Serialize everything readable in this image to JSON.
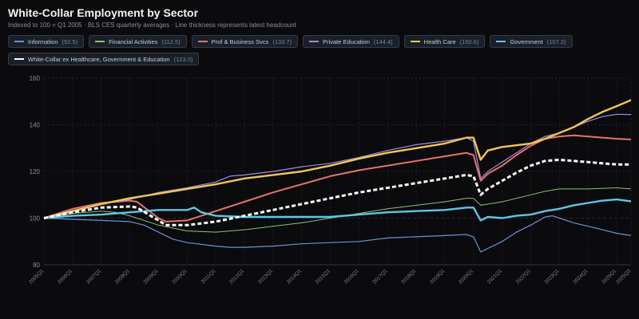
{
  "chart_data": {
    "type": "line",
    "title": "White-Collar Employment by Sector",
    "subtitle": "Indexed to 100 = Q1 2005 · BLS CES quarterly averages · Line thickness represents latest headcount",
    "xlabel": "",
    "ylabel": "",
    "ylim": [
      80,
      160
    ],
    "yticks": [
      80,
      100,
      120,
      140,
      160
    ],
    "grid": true,
    "legend_placement": "top",
    "x_start": "2005Q1",
    "x_end": "2025Q3",
    "xtick_labels": [
      "2005Q1",
      "2006Q1",
      "2007Q1",
      "2008Q1",
      "2009Q1",
      "2010Q1",
      "2011Q1",
      "2012Q1",
      "2013Q1",
      "2014Q1",
      "2015Q1",
      "2016Q1",
      "2017Q1",
      "2018Q1",
      "2019Q1",
      "2020Q1",
      "2021Q1",
      "2022Q1",
      "2023Q1",
      "2024Q1",
      "2025Q1",
      "2025Q3"
    ],
    "series": [
      {
        "name": "Information",
        "latest": "92.5",
        "color": "#6f8fd6",
        "width": 1.2,
        "dashed": false,
        "points": [
          [
            "2005Q1",
            100
          ],
          [
            "2006Q1",
            99.5
          ],
          [
            "2007Q1",
            99
          ],
          [
            "2008Q1",
            98.5
          ],
          [
            "2008Q3",
            97
          ],
          [
            "2009Q1",
            94
          ],
          [
            "2009Q3",
            91
          ],
          [
            "2010Q1",
            89.5
          ],
          [
            "2011Q1",
            88
          ],
          [
            "2011Q3",
            87.5
          ],
          [
            "2012Q1",
            87.5
          ],
          [
            "2013Q1",
            88
          ],
          [
            "2014Q1",
            89
          ],
          [
            "2015Q1",
            89.5
          ],
          [
            "2016Q1",
            90
          ],
          [
            "2017Q1",
            91.5
          ],
          [
            "2018Q1",
            92
          ],
          [
            "2019Q1",
            92.5
          ],
          [
            "2019Q4",
            93
          ],
          [
            "2020Q1",
            92
          ],
          [
            "2020Q2",
            85.5
          ],
          [
            "2020Q3",
            87
          ],
          [
            "2021Q1",
            90
          ],
          [
            "2021Q3",
            94
          ],
          [
            "2022Q1",
            97
          ],
          [
            "2022Q3",
            100.5
          ],
          [
            "2022Q4",
            101
          ],
          [
            "2023Q1",
            100
          ],
          [
            "2023Q3",
            98
          ],
          [
            "2024Q1",
            96.5
          ],
          [
            "2024Q3",
            95
          ],
          [
            "2025Q1",
            93.5
          ],
          [
            "2025Q3",
            92.5
          ]
        ]
      },
      {
        "name": "Financial Activities",
        "latest": "112.5",
        "color": "#8fbf7a",
        "width": 1.0,
        "dashed": false,
        "points": [
          [
            "2005Q1",
            100
          ],
          [
            "2006Q1",
            102
          ],
          [
            "2007Q1",
            103
          ],
          [
            "2007Q3",
            102.5
          ],
          [
            "2008Q1",
            101
          ],
          [
            "2009Q1",
            97
          ],
          [
            "2010Q1",
            94.5
          ],
          [
            "2011Q1",
            94
          ],
          [
            "2012Q1",
            95
          ],
          [
            "2013Q1",
            96.5
          ],
          [
            "2014Q1",
            98
          ],
          [
            "2015Q1",
            100
          ],
          [
            "2016Q1",
            102
          ],
          [
            "2017Q1",
            104
          ],
          [
            "2018Q1",
            105.5
          ],
          [
            "2019Q1",
            107
          ],
          [
            "2019Q4",
            108.5
          ],
          [
            "2020Q1",
            108.5
          ],
          [
            "2020Q2",
            105.5
          ],
          [
            "2021Q1",
            107
          ],
          [
            "2022Q1",
            110
          ],
          [
            "2022Q3",
            111.5
          ],
          [
            "2023Q1",
            112.5
          ],
          [
            "2024Q1",
            112.5
          ],
          [
            "2025Q1",
            113
          ],
          [
            "2025Q3",
            112.5
          ]
        ]
      },
      {
        "name": "Prof & Business Svcs",
        "latest": "133.7",
        "color": "#e8736d",
        "width": 2.0,
        "dashed": false,
        "points": [
          [
            "2005Q1",
            100
          ],
          [
            "2006Q1",
            104
          ],
          [
            "2007Q1",
            106.5
          ],
          [
            "2008Q1",
            107.5
          ],
          [
            "2008Q2",
            107
          ],
          [
            "2009Q1",
            100
          ],
          [
            "2009Q2",
            98.5
          ],
          [
            "2010Q1",
            99
          ],
          [
            "2011Q1",
            103
          ],
          [
            "2012Q1",
            107
          ],
          [
            "2013Q1",
            111
          ],
          [
            "2014Q1",
            114.5
          ],
          [
            "2015Q1",
            118
          ],
          [
            "2016Q1",
            120.5
          ],
          [
            "2017Q1",
            122.5
          ],
          [
            "2018Q1",
            124.5
          ],
          [
            "2019Q1",
            126.5
          ],
          [
            "2019Q4",
            128
          ],
          [
            "2020Q1",
            127
          ],
          [
            "2020Q2",
            116
          ],
          [
            "2020Q3",
            119
          ],
          [
            "2021Q1",
            122.5
          ],
          [
            "2021Q3",
            127
          ],
          [
            "2022Q1",
            131
          ],
          [
            "2022Q3",
            134
          ],
          [
            "2023Q1",
            135
          ],
          [
            "2023Q3",
            135.5
          ],
          [
            "2024Q1",
            135
          ],
          [
            "2024Q3",
            134.5
          ],
          [
            "2025Q1",
            134
          ],
          [
            "2025Q3",
            133.7
          ]
        ]
      },
      {
        "name": "Private Education",
        "latest": "144.4",
        "color": "#a58be0",
        "width": 1.2,
        "dashed": false,
        "points": [
          [
            "2005Q1",
            100
          ],
          [
            "2006Q1",
            103
          ],
          [
            "2007Q1",
            106
          ],
          [
            "2008Q1",
            108
          ],
          [
            "2009Q1",
            111
          ],
          [
            "2010Q1",
            113
          ],
          [
            "2011Q1",
            115.5
          ],
          [
            "2011Q3",
            118
          ],
          [
            "2012Q1",
            118.5
          ],
          [
            "2013Q1",
            120
          ],
          [
            "2014Q1",
            122
          ],
          [
            "2015Q1",
            123.5
          ],
          [
            "2016Q1",
            126
          ],
          [
            "2017Q1",
            129
          ],
          [
            "2018Q1",
            131.5
          ],
          [
            "2019Q1",
            133
          ],
          [
            "2019Q4",
            134.5
          ],
          [
            "2020Q1",
            133
          ],
          [
            "2020Q2",
            117
          ],
          [
            "2020Q3",
            120
          ],
          [
            "2021Q1",
            124
          ],
          [
            "2021Q3",
            128
          ],
          [
            "2022Q1",
            132
          ],
          [
            "2022Q3",
            135
          ],
          [
            "2023Q1",
            136.5
          ],
          [
            "2023Q3",
            139
          ],
          [
            "2024Q1",
            141.5
          ],
          [
            "2024Q3",
            143.5
          ],
          [
            "2025Q1",
            144.5
          ],
          [
            "2025Q3",
            144.4
          ]
        ]
      },
      {
        "name": "Health Care",
        "latest": "150.6",
        "color": "#f0c75a",
        "width": 2.4,
        "dashed": false,
        "points": [
          [
            "2005Q1",
            100
          ],
          [
            "2006Q1",
            103
          ],
          [
            "2007Q1",
            106
          ],
          [
            "2008Q1",
            108.5
          ],
          [
            "2009Q1",
            110.5
          ],
          [
            "2010Q1",
            112.5
          ],
          [
            "2011Q1",
            114.5
          ],
          [
            "2012Q1",
            117
          ],
          [
            "2013Q1",
            118.5
          ],
          [
            "2014Q1",
            120
          ],
          [
            "2015Q1",
            122.5
          ],
          [
            "2016Q1",
            125.5
          ],
          [
            "2017Q1",
            128
          ],
          [
            "2018Q1",
            130
          ],
          [
            "2019Q1",
            132
          ],
          [
            "2019Q4",
            134.5
          ],
          [
            "2020Q1",
            134.5
          ],
          [
            "2020Q2",
            125
          ],
          [
            "2020Q3",
            129
          ],
          [
            "2021Q1",
            130.5
          ],
          [
            "2022Q1",
            132
          ],
          [
            "2022Q3",
            134
          ],
          [
            "2023Q1",
            136.5
          ],
          [
            "2023Q3",
            139
          ],
          [
            "2024Q1",
            142.5
          ],
          [
            "2024Q3",
            145.5
          ],
          [
            "2025Q1",
            148
          ],
          [
            "2025Q3",
            150.6
          ]
        ]
      },
      {
        "name": "Government",
        "latest": "107.2",
        "color": "#5fc6e6",
        "width": 2.4,
        "dashed": false,
        "points": [
          [
            "2005Q1",
            100
          ],
          [
            "2006Q1",
            101
          ],
          [
            "2007Q1",
            101.5
          ],
          [
            "2008Q1",
            102.5
          ],
          [
            "2009Q1",
            103.5
          ],
          [
            "2009Q3",
            103.5
          ],
          [
            "2010Q1",
            103.5
          ],
          [
            "2010Q2",
            104.5
          ],
          [
            "2010Q3",
            102.5
          ],
          [
            "2011Q1",
            101
          ],
          [
            "2012Q1",
            100.5
          ],
          [
            "2013Q1",
            100.5
          ],
          [
            "2014Q1",
            100.5
          ],
          [
            "2015Q1",
            100.5
          ],
          [
            "2016Q1",
            101.5
          ],
          [
            "2017Q1",
            102.5
          ],
          [
            "2018Q1",
            103
          ],
          [
            "2019Q1",
            103.5
          ],
          [
            "2019Q4",
            104.5
          ],
          [
            "2020Q1",
            104.5
          ],
          [
            "2020Q2",
            99
          ],
          [
            "2020Q3",
            100.5
          ],
          [
            "2021Q1",
            100
          ],
          [
            "2021Q3",
            101
          ],
          [
            "2022Q1",
            101.5
          ],
          [
            "2022Q3",
            103
          ],
          [
            "2023Q1",
            104
          ],
          [
            "2023Q3",
            105.5
          ],
          [
            "2024Q1",
            106.5
          ],
          [
            "2024Q3",
            107.5
          ],
          [
            "2025Q1",
            108
          ],
          [
            "2025Q3",
            107.2
          ]
        ]
      },
      {
        "name": "White-Collar ex Healthcare, Government & Education",
        "latest": "123.0",
        "color": "#ffffff",
        "width": 3.0,
        "dashed": true,
        "points": [
          [
            "2005Q1",
            100
          ],
          [
            "2006Q1",
            102.5
          ],
          [
            "2007Q1",
            104.5
          ],
          [
            "2008Q1",
            105
          ],
          [
            "2008Q2",
            104.5
          ],
          [
            "2009Q1",
            99
          ],
          [
            "2009Q2",
            97
          ],
          [
            "2010Q1",
            97
          ],
          [
            "2011Q1",
            98.5
          ],
          [
            "2012Q1",
            101
          ],
          [
            "2013Q1",
            103.5
          ],
          [
            "2014Q1",
            106
          ],
          [
            "2015Q1",
            108.5
          ],
          [
            "2016Q1",
            111
          ],
          [
            "2017Q1",
            113
          ],
          [
            "2018Q1",
            115
          ],
          [
            "2019Q1",
            117
          ],
          [
            "2019Q4",
            118.5
          ],
          [
            "2020Q1",
            118
          ],
          [
            "2020Q2",
            110
          ],
          [
            "2020Q3",
            112.5
          ],
          [
            "2021Q1",
            116
          ],
          [
            "2021Q3",
            119.5
          ],
          [
            "2022Q1",
            122.5
          ],
          [
            "2022Q3",
            124.5
          ],
          [
            "2023Q1",
            125
          ],
          [
            "2023Q3",
            124.5
          ],
          [
            "2024Q1",
            124
          ],
          [
            "2024Q3",
            123.5
          ],
          [
            "2025Q1",
            123
          ],
          [
            "2025Q3",
            123.0
          ]
        ]
      }
    ]
  }
}
